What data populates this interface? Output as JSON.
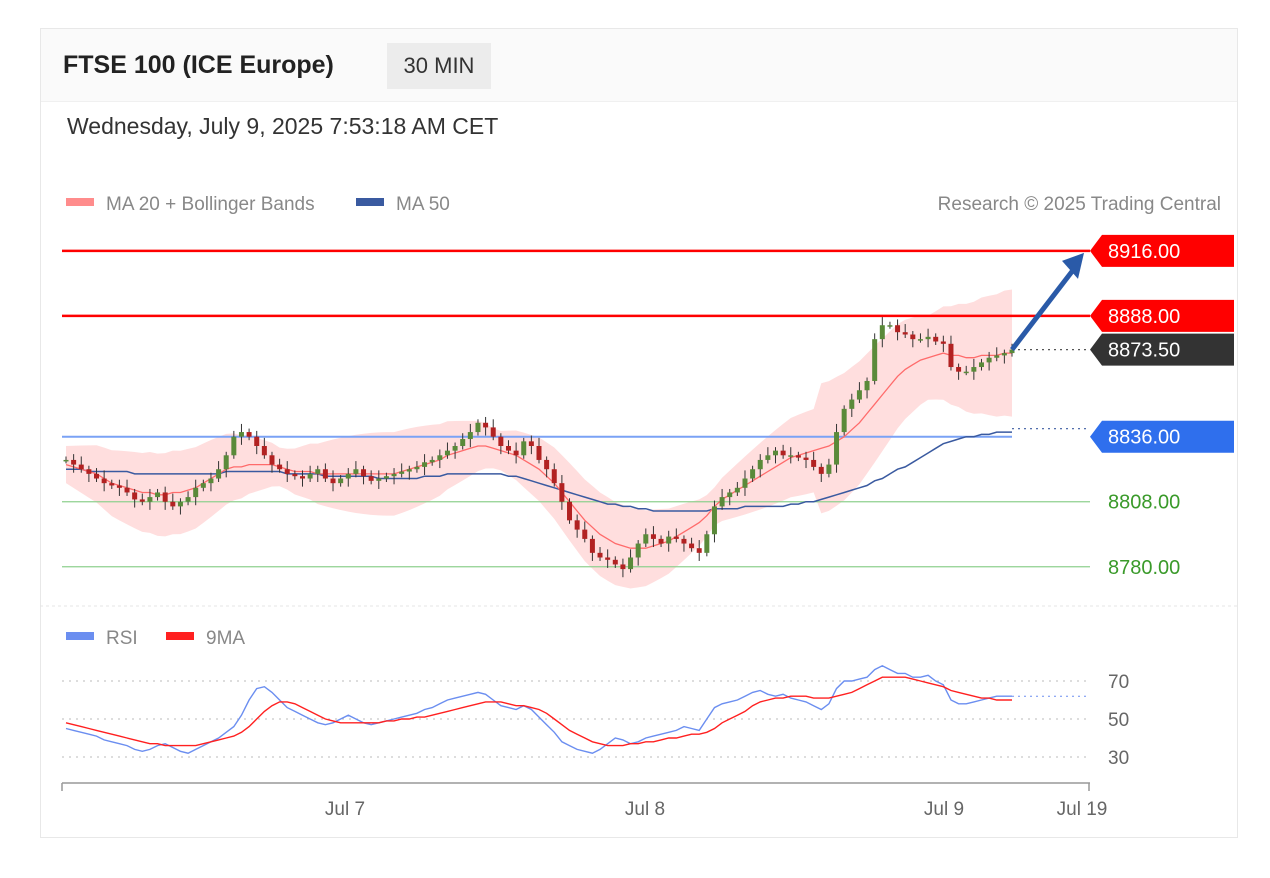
{
  "header": {
    "title": "FTSE 100 (ICE Europe)",
    "interval": "30 MIN"
  },
  "timestamp": "Wednesday, July 9, 2025 7:53:18 AM CET",
  "colors": {
    "resistance": "#ff0000",
    "current": "#333333",
    "pivot": "#2f6fed",
    "support": "#3a9a2a",
    "ma50": "#3a5aa0",
    "bollinger": "#ffd6d6",
    "rsi": "#6b8ef0",
    "rsi_ma": "#ff2020",
    "arrow": "#2a5aa8",
    "candle_up": "#5a8a3a",
    "candle_down": "#b22222"
  },
  "chart_data": [
    {
      "type": "line",
      "title": "",
      "legend": [
        "MA 20 + Bollinger Bands",
        "MA 50"
      ],
      "legend_position": "top-left",
      "copyright": "Research © 2025 Trading Central",
      "x_ticks": [
        "Jul 7",
        "Jul 8",
        "Jul 9",
        "Jul 19"
      ],
      "ylim": [
        8770,
        8925
      ],
      "levels": [
        {
          "label": "8916.00",
          "value": 8916,
          "kind": "resistance"
        },
        {
          "label": "8888.00",
          "value": 8888,
          "kind": "resistance"
        },
        {
          "label": "8873.50",
          "value": 8873.5,
          "kind": "current"
        },
        {
          "label": "8836.00",
          "value": 8836,
          "kind": "pivot"
        },
        {
          "label": "8808.00",
          "value": 8808,
          "kind": "support"
        },
        {
          "label": "8780.00",
          "value": 8780,
          "kind": "support"
        }
      ],
      "forecast": {
        "from": 8873.5,
        "to": 8916,
        "direction": "up"
      },
      "close": [
        8826,
        8824,
        8822,
        8820,
        8818,
        8816,
        8815,
        8814,
        8812,
        8809,
        8808,
        8810,
        8812,
        8808,
        8806,
        8808,
        8810,
        8814,
        8816,
        8818,
        8822,
        8828,
        8836,
        8838,
        8836,
        8832,
        8828,
        8824,
        8822,
        8820,
        8819,
        8818,
        8820,
        8822,
        8818,
        8816,
        8818,
        8820,
        8822,
        8819,
        8817,
        8818,
        8819,
        8820,
        8821,
        8822,
        8823,
        8825,
        8826,
        8828,
        8830,
        8832,
        8835,
        8838,
        8842,
        8840,
        8836,
        8832,
        8830,
        8828,
        8834,
        8832,
        8826,
        8822,
        8816,
        8808,
        8800,
        8796,
        8792,
        8786,
        8784,
        8783,
        8781,
        8779,
        8784,
        8790,
        8794,
        8792,
        8790,
        8793,
        8792,
        8790,
        8788,
        8786,
        8794,
        8806,
        8810,
        8812,
        8814,
        8818,
        8822,
        8826,
        8828,
        8830,
        8828,
        8828,
        8827,
        8826,
        8823,
        8820,
        8824,
        8838,
        8848,
        8852,
        8856,
        8860,
        8878,
        8884,
        8884,
        8881,
        8880,
        8878,
        8878,
        8879,
        8877,
        8876,
        8866,
        8864,
        8864,
        8866,
        8868,
        8870,
        8871,
        8872,
        8873.5
      ],
      "ma20": [
        8824,
        8823,
        8822,
        8821,
        8820,
        8818,
        8816,
        8815,
        8814,
        8813,
        8812,
        8812,
        8811,
        8811,
        8812,
        8812,
        8813,
        8814,
        8816,
        8818,
        8820,
        8822,
        8823,
        8823,
        8824,
        8824,
        8824,
        8824,
        8823,
        8822,
        8821,
        8821,
        8821,
        8820,
        8820,
        8820,
        8820,
        8820,
        8820,
        8820,
        8820,
        8820,
        8820,
        8820,
        8821,
        8822,
        8823,
        8824,
        8825,
        8826,
        8828,
        8829,
        8830,
        8831,
        8832,
        8832,
        8831,
        8830,
        8829,
        8828,
        8826,
        8824,
        8822,
        8819,
        8816,
        8812,
        8808,
        8804,
        8800,
        8797,
        8794,
        8792,
        8790,
        8789,
        8788,
        8788,
        8788,
        8789,
        8790,
        8791,
        8793,
        8795,
        8797,
        8799,
        8802,
        8806,
        8809,
        8811,
        8813,
        8815,
        8817,
        8819,
        8821,
        8823,
        8825,
        8827,
        8828,
        8829,
        8830,
        8831,
        8832,
        8834,
        8836,
        8839,
        8842,
        8846,
        8850,
        8854,
        8858,
        8862,
        8865,
        8867,
        8869,
        8870,
        8871,
        8872,
        8871,
        8871,
        8870,
        8870,
        8871,
        8871,
        8871,
        8872,
        8872
      ],
      "ma50": [
        8822,
        8822,
        8822,
        8821,
        8821,
        8821,
        8821,
        8821,
        8821,
        8820,
        8820,
        8820,
        8820,
        8820,
        8820,
        8820,
        8820,
        8820,
        8820,
        8820,
        8820,
        8821,
        8821,
        8821,
        8821,
        8821,
        8821,
        8821,
        8821,
        8820,
        8820,
        8820,
        8820,
        8820,
        8819,
        8819,
        8819,
        8819,
        8819,
        8819,
        8819,
        8818,
        8818,
        8818,
        8818,
        8818,
        8818,
        8819,
        8819,
        8819,
        8820,
        8820,
        8820,
        8820,
        8820,
        8820,
        8820,
        8820,
        8819,
        8819,
        8818,
        8817,
        8816,
        8815,
        8814,
        8813,
        8812,
        8811,
        8810,
        8809,
        8808,
        8807,
        8807,
        8806,
        8806,
        8805,
        8805,
        8804,
        8804,
        8804,
        8804,
        8804,
        8804,
        8804,
        8804,
        8805,
        8805,
        8805,
        8805,
        8806,
        8806,
        8806,
        8806,
        8806,
        8806,
        8807,
        8807,
        8808,
        8808,
        8809,
        8810,
        8811,
        8812,
        8813,
        8814,
        8815,
        8817,
        8818,
        8820,
        8822,
        8823,
        8825,
        8827,
        8829,
        8831,
        8833,
        8834,
        8835,
        8836,
        8836,
        8837,
        8837,
        8838,
        8838,
        8838
      ]
    },
    {
      "type": "line",
      "title": "",
      "legend": [
        "RSI",
        "9MA"
      ],
      "legend_position": "top-left",
      "y_ticks": [
        "70",
        "50",
        "30"
      ],
      "ylim": [
        20,
        80
      ],
      "rsi": [
        45,
        44,
        43,
        42,
        41,
        39,
        38,
        37,
        36,
        34,
        33,
        34,
        36,
        37,
        35,
        33,
        32,
        34,
        36,
        38,
        40,
        43,
        46,
        52,
        60,
        66,
        67,
        64,
        60,
        56,
        54,
        52,
        50,
        48,
        47,
        48,
        50,
        52,
        50,
        48,
        47,
        48,
        49,
        50,
        51,
        52,
        53,
        55,
        56,
        58,
        60,
        61,
        62,
        63,
        64,
        63,
        60,
        57,
        56,
        55,
        57,
        55,
        51,
        47,
        43,
        38,
        36,
        34,
        33,
        32,
        34,
        37,
        40,
        39,
        37,
        38,
        40,
        41,
        42,
        43,
        44,
        46,
        45,
        44,
        50,
        56,
        58,
        59,
        60,
        62,
        64,
        65,
        63,
        62,
        63,
        61,
        60,
        59,
        57,
        55,
        58,
        66,
        70,
        70,
        71,
        72,
        76,
        78,
        76,
        74,
        74,
        72,
        72,
        73,
        70,
        68,
        60,
        58,
        58,
        59,
        60,
        61,
        62,
        62,
        62
      ],
      "ma9": [
        48,
        47,
        46,
        45,
        44,
        43,
        42,
        41,
        40,
        39,
        38,
        37,
        37,
        36,
        36,
        36,
        36,
        36,
        37,
        38,
        39,
        40,
        41,
        43,
        46,
        50,
        54,
        57,
        59,
        59,
        58,
        56,
        54,
        52,
        50,
        49,
        48,
        48,
        48,
        48,
        48,
        48,
        49,
        49,
        50,
        50,
        51,
        51,
        52,
        53,
        54,
        55,
        56,
        57,
        58,
        59,
        59,
        59,
        58,
        57,
        57,
        56,
        55,
        53,
        50,
        47,
        44,
        42,
        40,
        38,
        37,
        36,
        36,
        36,
        37,
        37,
        38,
        38,
        39,
        40,
        40,
        41,
        42,
        42,
        43,
        45,
        48,
        50,
        52,
        54,
        57,
        59,
        60,
        61,
        61,
        62,
        62,
        62,
        61,
        61,
        61,
        62,
        63,
        64,
        66,
        68,
        70,
        72,
        72,
        72,
        72,
        71,
        70,
        69,
        68,
        67,
        65,
        64,
        63,
        62,
        61,
        61,
        60,
        60,
        60
      ]
    }
  ]
}
